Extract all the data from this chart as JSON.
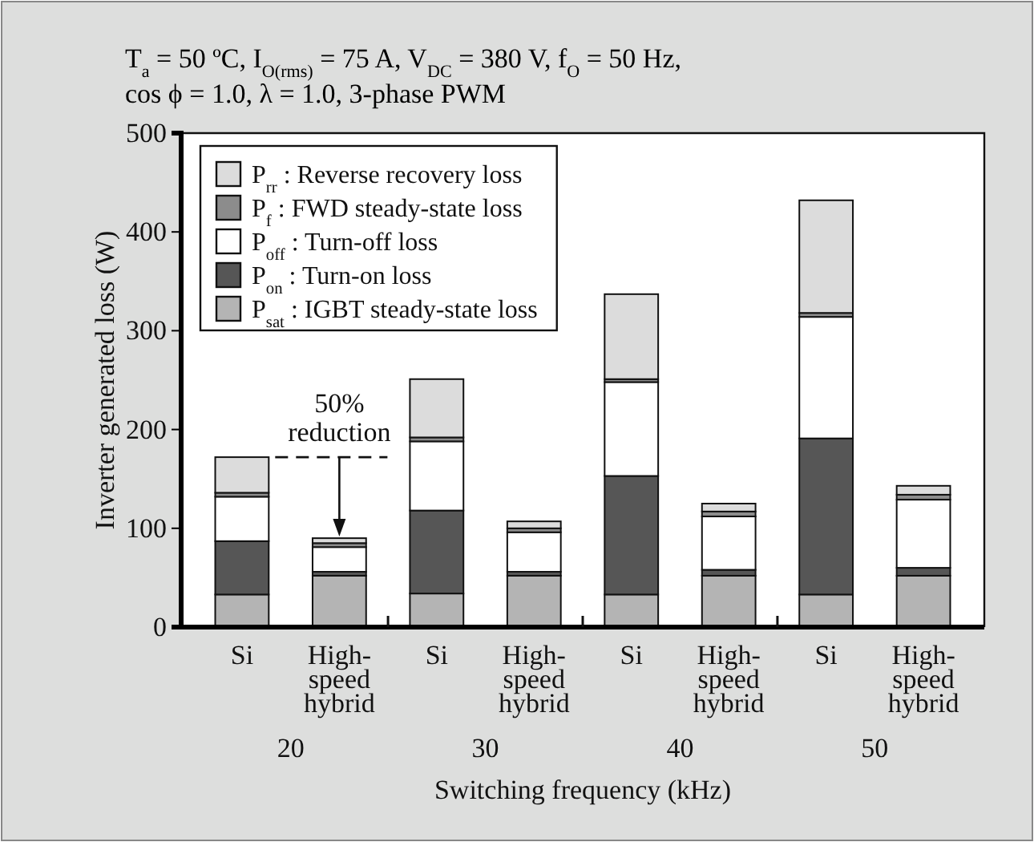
{
  "chart_data": {
    "type": "bar",
    "stacked": true,
    "title": "T$_{a}$ = 50 ºC, I$_{O(rms)}$ = 75 A, V$_{DC}$ = 380 V, f$_{O}$ = 50 Hz,",
    "subtitle": "cos ϕ = 1.0, λ = 1.0, 3-phase PWM",
    "xlabel": "Switching frequency (kHz)",
    "ylabel": "Inverter generated loss (W)",
    "categories": [
      "Si",
      "High-speed hybrid",
      "Si",
      "High-speed hybrid",
      "Si",
      "High-speed hybrid",
      "Si",
      "High-speed hybrid"
    ],
    "series": [
      {
        "name": "P$_{sat}$ : IGBT steady-state loss",
        "color": "#b4b4b4",
        "values": [
          33,
          52,
          34,
          52,
          33,
          52,
          33,
          52
        ]
      },
      {
        "name": "P$_{on}$ : Turn-on loss",
        "color": "#565656",
        "values": [
          54,
          4,
          84,
          4,
          120,
          6,
          158,
          8
        ]
      },
      {
        "name": "P$_{off}$ : Turn-off loss",
        "color": "#ffffff",
        "values": [
          45,
          25,
          70,
          40,
          95,
          54,
          123,
          69
        ]
      },
      {
        "name": "P$_{f}$ : FWD steady-state loss",
        "color": "#8c8c8c",
        "values": [
          4,
          4,
          4,
          4,
          3,
          5,
          4,
          5
        ]
      },
      {
        "name": "P$_{rr}$ : Reverse recovery loss",
        "color": "#dcdcdc",
        "values": [
          36,
          5,
          59,
          7,
          86,
          8,
          114,
          9
        ]
      }
    ],
    "ylim": [
      0,
      500
    ],
    "yticks": [
      0,
      100,
      200,
      300,
      400,
      500
    ],
    "legend": "top left",
    "annotations": [
      "50% reduction",
      "20",
      "30",
      "40",
      "50"
    ]
  }
}
